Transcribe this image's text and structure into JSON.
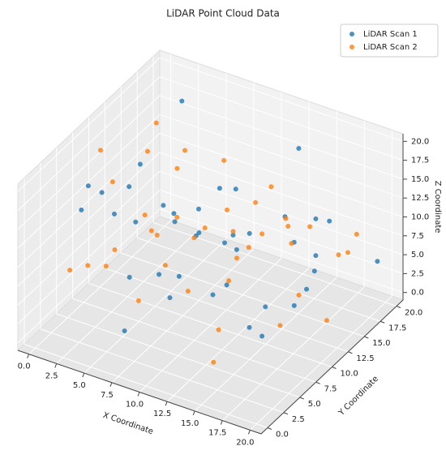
{
  "chart_data": {
    "type": "scatter3d",
    "title": "LiDAR Point Cloud Data",
    "xlabel": "X Coordinate",
    "ylabel": "Y Coordinate",
    "zlabel": "Z Coordinate",
    "xlim": [
      -1,
      21
    ],
    "ylim": [
      -1,
      21
    ],
    "zlim": [
      -1,
      21
    ],
    "xticks": [
      {
        "value": 0,
        "label": "0.0"
      },
      2.5,
      {
        "value": 5,
        "label": "5.0"
      },
      7.5,
      {
        "value": 10,
        "label": "10.0"
      },
      12.5,
      {
        "value": 15,
        "label": "15.0"
      },
      17.5,
      {
        "value": 20,
        "label": "20.0"
      }
    ],
    "yticks": [
      {
        "value": 0,
        "label": "0.0"
      },
      2.5,
      {
        "value": 5,
        "label": "5.0"
      },
      7.5,
      {
        "value": 10,
        "label": "10.0"
      },
      12.5,
      {
        "value": 15,
        "label": "15.0"
      },
      17.5,
      {
        "value": 20,
        "label": "20.0"
      }
    ],
    "zticks": [
      {
        "value": 0,
        "label": "0.0"
      },
      2.5,
      {
        "value": 5,
        "label": "5.0"
      },
      7.5,
      {
        "value": 10,
        "label": "10.0"
      },
      12.5,
      {
        "value": 15,
        "label": "15.0"
      },
      17.5,
      {
        "value": 20,
        "label": "20.0"
      }
    ],
    "grid": true,
    "legend": "upper right",
    "series": [
      {
        "name": "LiDAR Scan 1",
        "color": "#1f77b4",
        "x": [
          1.2,
          3.5,
          5.8,
          7.1,
          9.4,
          11.2,
          13.6,
          15.9,
          18.3,
          19.5,
          2.4,
          4.7,
          6.9,
          8.2,
          10.5,
          12.8,
          14.1,
          16.4,
          17.7,
          0.6,
          3.1,
          5.2,
          7.8,
          9.9,
          11.7,
          13.2,
          15.5,
          17.9,
          19.1,
          2.0,
          4.3,
          6.4,
          8.6,
          10.1,
          12.3,
          14.8,
          16.2,
          18.8,
          1.7,
          5.5
        ],
        "y": [
          14.2,
          8.6,
          2.3,
          18.9,
          11.4,
          5.7,
          16.8,
          3.4,
          12.1,
          19.6,
          6.2,
          17.3,
          9.8,
          1.5,
          15.2,
          7.4,
          19.1,
          10.6,
          4.8,
          13.5,
          2.9,
          16.4,
          8.1,
          12.7,
          0.8,
          18.2,
          6.6,
          14.9,
          9.3,
          3.7,
          11.8,
          17.6,
          5.1,
          13.9,
          1.2,
          10.3,
          15.7,
          7.9,
          19.8,
          4.4
        ],
        "z": [
          12.5,
          3.2,
          17.8,
          8.4,
          1.6,
          14.9,
          6.3,
          19.2,
          10.7,
          4.5,
          15.8,
          2.7,
          11.3,
          18.6,
          7.2,
          13.4,
          0.9,
          16.1,
          5.6,
          9.8,
          19.7,
          6.8,
          14.2,
          2.1,
          10.9,
          17.4,
          4.2,
          12.8,
          8.9,
          15.3,
          1.4,
          9.2,
          18.1,
          5.9,
          13.7,
          3.6,
          11.6,
          7.7,
          16.6,
          0.5
        ]
      },
      {
        "name": "LiDAR Scan 2",
        "color": "#ff7f0e",
        "x": [
          0.9,
          2.8,
          4.6,
          6.3,
          8.8,
          10.2,
          12.4,
          14.5,
          16.7,
          18.6,
          19.8,
          1.5,
          3.9,
          5.4,
          7.6,
          9.1,
          11.5,
          13.8,
          15.1,
          17.3,
          0.3,
          2.2,
          4.1,
          6.7,
          8.3,
          10.8,
          12.1,
          14.3,
          16.9,
          19.2,
          1.9,
          3.3,
          5.9,
          7.3,
          9.6,
          11.9,
          13.4,
          15.6,
          17.8,
          18.9
        ],
        "y": [
          3.8,
          12.6,
          18.4,
          7.2,
          1.9,
          15.6,
          9.4,
          17.7,
          2.6,
          13.3,
          6.9,
          19.4,
          5.3,
          10.9,
          16.2,
          0.4,
          8.7,
          12.9,
          4.1,
          18.8,
          9.6,
          15.1,
          1.1,
          11.7,
          19.9,
          6.1,
          14.4,
          3.1,
          10.2,
          16.9,
          7.7,
          13.1,
          2.2,
          17.2,
          5.5,
          19.3,
          0.7,
          11.2,
          8.3,
          14.6
        ],
        "z": [
          6.7,
          16.3,
          2.4,
          11.9,
          19.5,
          4.9,
          13.1,
          8.1,
          17.2,
          1.3,
          10.4,
          7.9,
          18.7,
          3.9,
          14.6,
          9.5,
          0.2,
          16.9,
          12.2,
          5.2,
          17.6,
          2.9,
          11.1,
          19.1,
          6.4,
          14.1,
          8.6,
          1.8,
          15.4,
          10.1,
          4.6,
          19.9,
          13.2,
          7.1,
          16.7,
          3.3,
          12.7,
          0.8,
          18.4,
          9.1
        ]
      }
    ]
  }
}
